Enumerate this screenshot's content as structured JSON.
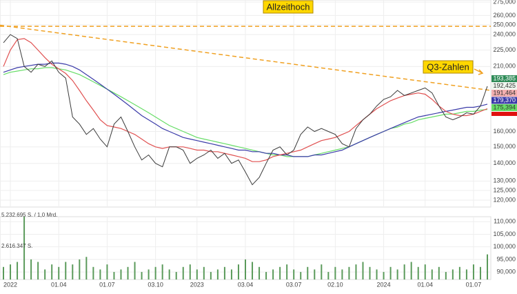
{
  "chart_data": {
    "type": "line",
    "categories": [
      null,
      "2022",
      null,
      null,
      null,
      null,
      null,
      null,
      "01.04",
      null,
      null,
      null,
      null,
      null,
      null,
      "01.07",
      null,
      null,
      null,
      null,
      null,
      null,
      "03.10",
      null,
      null,
      null,
      null,
      null,
      "2023",
      null,
      null,
      null,
      null,
      null,
      null,
      "03.04",
      null,
      null,
      null,
      null,
      null,
      null,
      "03.07",
      null,
      null,
      null,
      null,
      null,
      "02.10",
      null,
      null,
      null,
      null,
      null,
      null,
      "2024",
      null,
      null,
      null,
      null,
      null,
      "01.04",
      null,
      null,
      null,
      null,
      null,
      null,
      "01.07",
      null,
      null
    ],
    "log_scale": true,
    "grid": true,
    "ylim": [
      116.6,
      277.4
    ],
    "yticks": [
      {
        "value": 120,
        "label": "120,000"
      },
      {
        "value": 125,
        "label": "125,000"
      },
      {
        "value": 130,
        "label": "130,000"
      },
      {
        "value": 140,
        "label": "140,000"
      },
      {
        "value": 150,
        "label": "150,000"
      },
      {
        "value": 160,
        "label": "160,000"
      },
      {
        "value": 210,
        "label": "210,000"
      },
      {
        "value": 225,
        "label": "225,000"
      },
      {
        "value": 240,
        "label": "240,000"
      },
      {
        "value": 250,
        "label": "250,000"
      },
      {
        "value": 260,
        "label": "260,000"
      },
      {
        "value": 275,
        "label": "275,000"
      }
    ],
    "series": [
      {
        "color": "#3a3a3a",
        "values": [
          232,
          240,
          236,
          210,
          205,
          212,
          210,
          215,
          205,
          200,
          170,
          165,
          158,
          162,
          155,
          150,
          165,
          170,
          160,
          150,
          142,
          145,
          140,
          138,
          150,
          150,
          148,
          140,
          143,
          145,
          148,
          143,
          146,
          140,
          142,
          135,
          128,
          132,
          140,
          148,
          150,
          145,
          148,
          158,
          163,
          160,
          162,
          160,
          158,
          152,
          150,
          162,
          168,
          172,
          178,
          183,
          185,
          190,
          186,
          188,
          190,
          192,
          188,
          178,
          170,
          168,
          170,
          173,
          172,
          178,
          193.385
        ]
      },
      {
        "color": "#e05050",
        "values": [
          210,
          225,
          235,
          236,
          232,
          225,
          218,
          212,
          208,
          204,
          198,
          190,
          182,
          175,
          168,
          164,
          163,
          162,
          160,
          158,
          155,
          152,
          150,
          149,
          150,
          150,
          150,
          149,
          148,
          148,
          147,
          147,
          146,
          145,
          144,
          143,
          141,
          141,
          142,
          144,
          145,
          146,
          147,
          148,
          150,
          152,
          154,
          155,
          156,
          158,
          160,
          164,
          168,
          172,
          176,
          179,
          182,
          184,
          186,
          187,
          188,
          187,
          183,
          178,
          174,
          172,
          171,
          171,
          172,
          174,
          176
        ]
      },
      {
        "color": "#3a3aa8",
        "values": [
          205,
          207,
          209,
          210,
          211,
          212,
          212,
          213,
          213,
          212,
          210,
          207,
          203,
          199,
          195,
          191,
          187,
          183,
          179,
          175,
          171,
          168,
          165,
          162,
          160,
          158,
          156,
          155,
          154,
          153,
          152,
          151,
          150,
          149,
          148,
          148,
          147,
          147,
          146,
          146,
          145,
          145,
          144,
          144,
          144,
          145,
          145,
          146,
          147,
          148,
          150,
          152,
          154,
          156,
          158,
          160,
          162,
          164,
          166,
          168,
          170,
          171,
          172,
          173,
          174,
          175,
          176,
          177,
          177,
          178,
          179.37
        ]
      },
      {
        "color": "#66dd66",
        "values": [
          203,
          205,
          206,
          207,
          208,
          208,
          209,
          209,
          208,
          207,
          205,
          203,
          200,
          197,
          194,
          191,
          188,
          185,
          182,
          179,
          176,
          173,
          170,
          167,
          164,
          162,
          160,
          158,
          156,
          155,
          154,
          153,
          152,
          151,
          150,
          149,
          148,
          147,
          146,
          145,
          145,
          144,
          144,
          144,
          144,
          145,
          146,
          147,
          148,
          149,
          150,
          152,
          154,
          156,
          158,
          160,
          162,
          163,
          165,
          166,
          168,
          169,
          170,
          171,
          172,
          172,
          173,
          174,
          174,
          175,
          175.394
        ]
      }
    ],
    "trend_color": "#f0a020",
    "trendlines": [
      {
        "values": [
          248.5,
          248.5
        ]
      },
      {
        "values": [
          249.6,
          190
        ]
      }
    ],
    "annotations": [
      {
        "text": "Allzeithoch"
      },
      {
        "text": "Q3-Zahlen"
      }
    ],
    "last_quotes": [
      {
        "label": "193,385",
        "bg": "#2e8b57",
        "fg": "#ffffff"
      },
      {
        "label": "192,425",
        "bg": "#eef6ee",
        "fg": "#333333"
      },
      {
        "label": "191,464",
        "bg": "#f4b0b0",
        "fg": "#333333"
      },
      {
        "label": "179,370",
        "bg": "#3a3aa8",
        "fg": "#ffffff"
      },
      {
        "label": "175,394",
        "bg": "#66dd66",
        "fg": "#333333"
      }
    ],
    "volume": {
      "type": "bar",
      "color": "#5a9a5a",
      "values": [
        92,
        93,
        94,
        112,
        95,
        94,
        91,
        93,
        92,
        94,
        93,
        95,
        96,
        92,
        91,
        93,
        90,
        91,
        92,
        94,
        90,
        91,
        92,
        93,
        91,
        90,
        92,
        93,
        91,
        92,
        90,
        91,
        92,
        91,
        93,
        95,
        94,
        92,
        90,
        91,
        92,
        93,
        91,
        90,
        92,
        91,
        93,
        90,
        92,
        91,
        92,
        93,
        94,
        92,
        91,
        90,
        92,
        91,
        93,
        94,
        92,
        93,
        91,
        92,
        90,
        91,
        92,
        91,
        93,
        92,
        97
      ],
      "ylim": [
        87,
        112
      ],
      "yticks": [
        {
          "value": 90,
          "label": "90,000"
        },
        {
          "value": 95,
          "label": "95,000"
        },
        {
          "value": 100,
          "label": "100,000"
        },
        {
          "value": 105,
          "label": "105,000"
        },
        {
          "value": 110,
          "label": "110,000"
        }
      ],
      "labels": [
        "5.232.695 S. / 1,0 Mrd.",
        "2.616.347 S."
      ]
    }
  }
}
